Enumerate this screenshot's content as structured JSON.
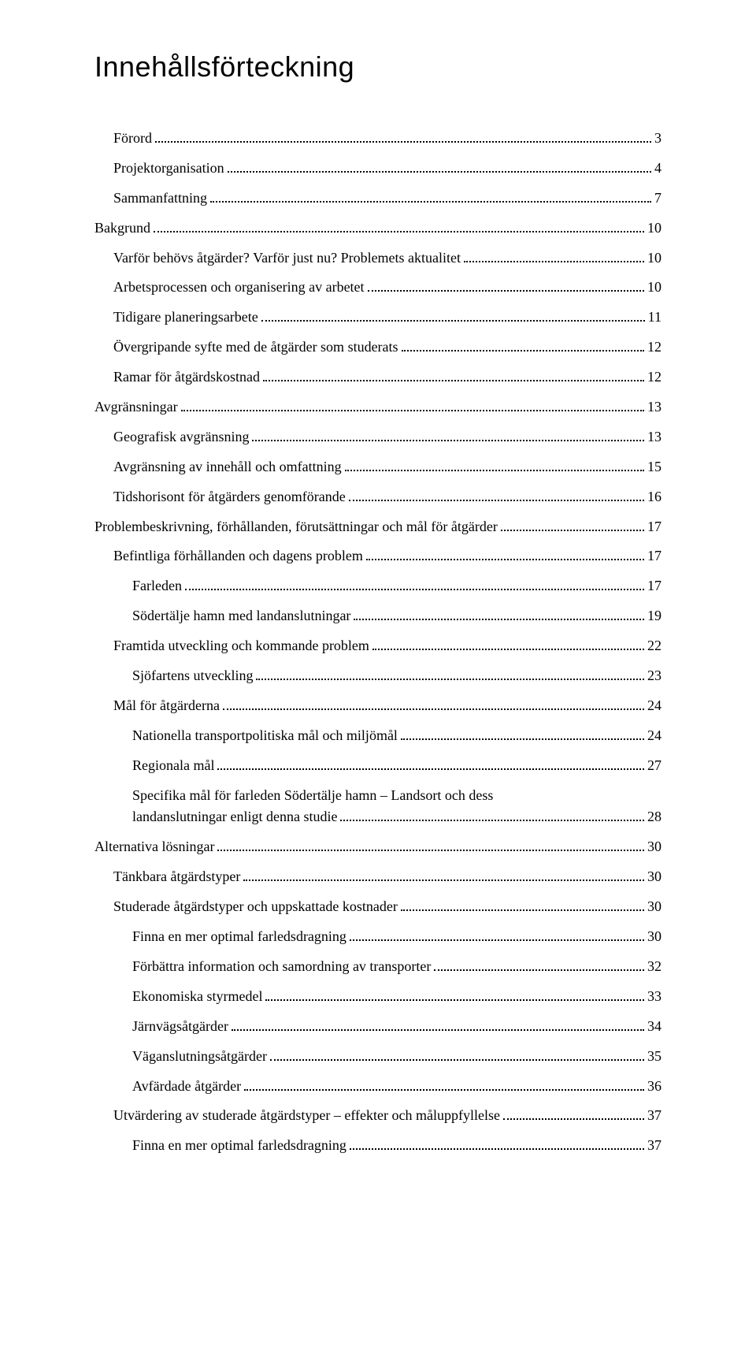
{
  "title": "Innehållsförteckning",
  "toc": [
    {
      "level": 1,
      "label": "Förord",
      "page": "3"
    },
    {
      "level": 1,
      "label": "Projektorganisation",
      "page": "4"
    },
    {
      "level": 1,
      "label": "Sammanfattning",
      "page": "7"
    },
    {
      "level": 0,
      "label": "Bakgrund",
      "page": "10"
    },
    {
      "level": 1,
      "label": "Varför behövs åtgärder? Varför just nu? Problemets aktualitet",
      "page": "10"
    },
    {
      "level": 1,
      "label": "Arbetsprocessen och organisering av arbetet",
      "page": "10"
    },
    {
      "level": 1,
      "label": "Tidigare planeringsarbete",
      "page": "11"
    },
    {
      "level": 1,
      "label": "Övergripande syfte med de åtgärder som studerats",
      "page": "12"
    },
    {
      "level": 1,
      "label": "Ramar för åtgärdskostnad",
      "page": "12"
    },
    {
      "level": 0,
      "label": "Avgränsningar",
      "page": "13"
    },
    {
      "level": 1,
      "label": "Geografisk avgränsning",
      "page": "13"
    },
    {
      "level": 1,
      "label": "Avgränsning av innehåll och omfattning",
      "page": "15"
    },
    {
      "level": 1,
      "label": "Tidshorisont för åtgärders genomförande",
      "page": "16"
    },
    {
      "level": 0,
      "label": "Problembeskrivning, förhållanden, förutsättningar och mål för åtgärder",
      "page": "17"
    },
    {
      "level": 1,
      "label": "Befintliga förhållanden och dagens problem",
      "page": "17"
    },
    {
      "level": 2,
      "label": "Farleden",
      "page": "17"
    },
    {
      "level": 2,
      "label": "Södertälje hamn med landanslutningar",
      "page": "19"
    },
    {
      "level": 1,
      "label": "Framtida utveckling och kommande problem",
      "page": "22"
    },
    {
      "level": 2,
      "label": "Sjöfartens utveckling",
      "page": "23"
    },
    {
      "level": 1,
      "label": "Mål för åtgärderna",
      "page": "24"
    },
    {
      "level": 2,
      "label": "Nationella transportpolitiska mål och miljömål",
      "page": "24"
    },
    {
      "level": 2,
      "label": "Regionala mål",
      "page": "27"
    },
    {
      "level": 2,
      "label": "Specifika mål för farleden Södertälje hamn – Landsort och dess landanslutningar enligt denna studie",
      "page": "28"
    },
    {
      "level": 0,
      "label": "Alternativa lösningar",
      "page": "30"
    },
    {
      "level": 1,
      "label": "Tänkbara åtgärdstyper",
      "page": "30"
    },
    {
      "level": 1,
      "label": "Studerade åtgärdstyper och uppskattade kostnader",
      "page": "30"
    },
    {
      "level": 2,
      "label": "Finna en mer optimal farledsdragning",
      "page": "30"
    },
    {
      "level": 2,
      "label": "Förbättra information och samordning av transporter",
      "page": "32"
    },
    {
      "level": 2,
      "label": "Ekonomiska styrmedel",
      "page": "33"
    },
    {
      "level": 2,
      "label": "Järnvägsåtgärder",
      "page": "34"
    },
    {
      "level": 2,
      "label": "Väganslutningsåtgärder",
      "page": "35"
    },
    {
      "level": 2,
      "label": "Avfärdade åtgärder",
      "page": "36"
    },
    {
      "level": 1,
      "label": "Utvärdering av studerade åtgärdstyper – effekter och måluppfyllelse",
      "page": "37"
    },
    {
      "level": 2,
      "label": "Finna en mer optimal farledsdragning",
      "page": "37"
    }
  ]
}
